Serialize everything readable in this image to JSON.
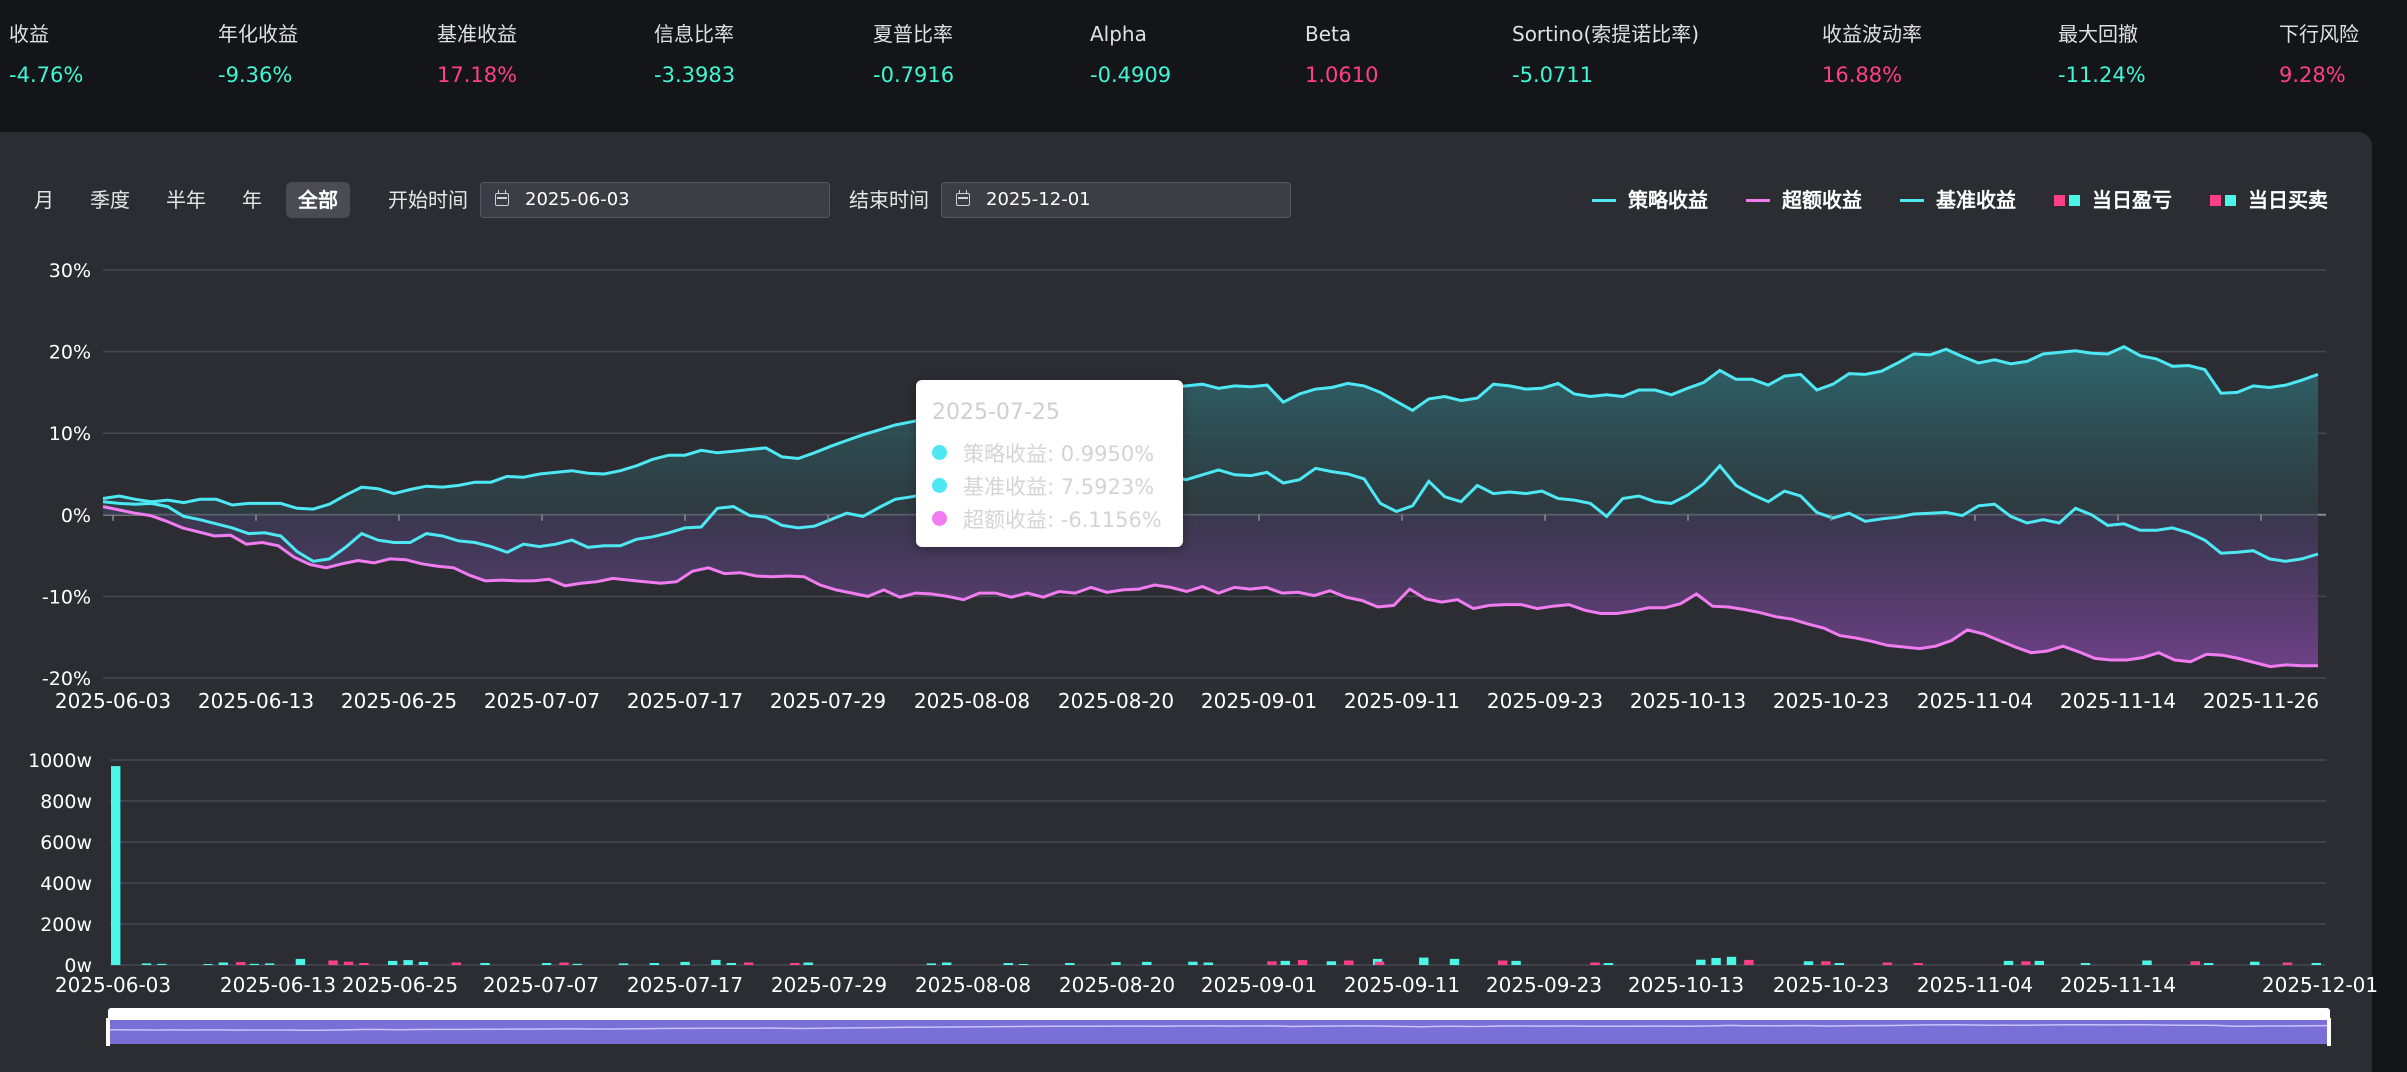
{
  "metrics": [
    {
      "label": "收益",
      "value": "-4.76%",
      "color": "#3ff7d4"
    },
    {
      "label": "年化收益",
      "value": "-9.36%",
      "color": "#3ff7d4"
    },
    {
      "label": "基准收益",
      "value": "17.18%",
      "color": "#ff3f86"
    },
    {
      "label": "信息比率",
      "value": "-3.3983",
      "color": "#3ff7d4"
    },
    {
      "label": "夏普比率",
      "value": "-0.7916",
      "color": "#3ff7d4"
    },
    {
      "label": "Alpha",
      "value": "-0.4909",
      "color": "#3ff7d4"
    },
    {
      "label": "Beta",
      "value": "1.0610",
      "color": "#ff3f86"
    },
    {
      "label": "Sortino(索提诺比率)",
      "value": "-5.0711",
      "color": "#3ff7d4"
    },
    {
      "label": "收益波动率",
      "value": "16.88%",
      "color": "#ff3f86"
    },
    {
      "label": "最大回撤",
      "value": "-11.24%",
      "color": "#3ff7d4"
    },
    {
      "label": "下行风险",
      "value": "9.28%",
      "color": "#ff3f86"
    }
  ],
  "controls": {
    "periods": [
      "月",
      "季度",
      "半年",
      "年",
      "全部"
    ],
    "active_period": "全部",
    "start_label": "开始时间",
    "start_date": "2025-06-03",
    "end_label": "结束时间",
    "end_date": "2025-12-01"
  },
  "legend": [
    {
      "name": "策略收益",
      "type": "line",
      "color": "#4de8f4"
    },
    {
      "name": "超额收益",
      "type": "line",
      "color": "#f07cf0"
    },
    {
      "name": "基准收益",
      "type": "line",
      "color": "#4de8f4"
    },
    {
      "name": "当日盈亏",
      "type": "squares",
      "colors": [
        "#ff3f86",
        "#4df5e6"
      ]
    },
    {
      "name": "当日买卖",
      "type": "squares",
      "colors": [
        "#ff3f86",
        "#4df5e6"
      ]
    }
  ],
  "tooltip": {
    "title": "2025-07-25",
    "rows": [
      {
        "label": "策略收益: 0.9950%",
        "color": "#4de8f4"
      },
      {
        "label": "基准收益: 7.5923%",
        "color": "#4de8f4"
      },
      {
        "label": "超额收益: -6.1156%",
        "color": "#f07cf0"
      }
    ]
  },
  "chart_data": [
    {
      "type": "line",
      "x_ticks": [
        "2025-06-03",
        "2025-06-13",
        "2025-06-25",
        "2025-07-07",
        "2025-07-17",
        "2025-07-29",
        "2025-08-08",
        "2025-08-20",
        "2025-09-01",
        "2025-09-11",
        "2025-09-23",
        "2025-10-13",
        "2025-10-23",
        "2025-11-04",
        "2025-11-14",
        "2025-11-26"
      ],
      "y_ticks": [
        "30%",
        "20%",
        "10%",
        "0%",
        "-10%",
        "-20%"
      ],
      "ylim": [
        -20,
        30
      ],
      "series": [
        {
          "name": "基准收益",
          "color": "#4de8f4",
          "values": [
            2.0,
            2.3,
            1.9,
            1.6,
            1.8,
            1.5,
            1.9,
            1.9,
            1.2,
            1.4,
            1.4,
            1.4,
            0.8,
            0.7,
            1.3,
            2.4,
            3.4,
            3.2,
            2.6,
            3.1,
            3.5,
            3.4,
            3.6,
            4.0,
            4.0,
            4.7,
            4.6,
            5.0,
            5.2,
            5.4,
            5.1,
            5.0,
            5.4,
            6.0,
            6.8,
            7.3,
            7.3,
            7.9,
            7.6,
            7.8,
            8.0,
            8.2,
            7.1,
            6.9,
            7.6,
            8.4,
            9.1,
            9.8,
            10.4,
            11.0,
            11.4,
            11.8,
            12.0,
            12.6,
            13.2,
            13.6,
            13.9,
            14.2,
            14.5,
            14.7,
            14.9,
            15.1,
            15.3,
            15.5,
            15.3,
            15.0,
            15.6,
            15.8,
            16.0,
            15.5,
            15.8,
            15.7,
            15.9,
            13.8,
            14.8,
            15.4,
            15.6,
            16.1,
            15.8,
            15.0,
            13.9,
            12.8,
            14.2,
            14.5,
            14.0,
            14.3,
            16.0,
            15.8,
            15.4,
            15.5,
            16.1,
            14.8,
            14.5,
            14.7,
            14.5,
            15.3,
            15.3,
            14.7,
            15.5,
            16.2,
            17.7,
            16.6,
            16.6,
            15.9,
            17.0,
            17.2,
            15.3,
            16.0,
            17.3,
            17.2,
            17.6,
            18.6,
            19.7,
            19.6,
            20.3,
            19.4,
            18.6,
            19.0,
            18.5,
            18.8,
            19.7,
            19.9,
            20.1,
            19.8,
            19.7,
            20.6,
            19.5,
            19.1,
            18.2,
            18.3,
            17.8,
            14.9,
            15.0,
            15.8,
            15.6,
            15.9,
            16.5,
            17.2
          ]
        },
        {
          "name": "策略收益",
          "color": "#4de8f4",
          "values": [
            1.6,
            1.4,
            1.3,
            1.4,
            1.0,
            -0.2,
            -0.6,
            -1.1,
            -1.6,
            -2.3,
            -2.2,
            -2.6,
            -4.5,
            -5.7,
            -5.4,
            -4.0,
            -2.3,
            -3.1,
            -3.4,
            -3.4,
            -2.3,
            -2.6,
            -3.2,
            -3.4,
            -3.9,
            -4.6,
            -3.6,
            -3.9,
            -3.6,
            -3.1,
            -4.0,
            -3.8,
            -3.8,
            -3.0,
            -2.7,
            -2.2,
            -1.6,
            -1.5,
            0.8,
            1.0,
            -0.1,
            -0.3,
            -1.3,
            -1.6,
            -1.4,
            -0.6,
            0.2,
            -0.2,
            0.9,
            1.9,
            2.2,
            2.6,
            3.1,
            4.1,
            3.8,
            4.4,
            5.1,
            4.7,
            5.3,
            5.0,
            4.4,
            4.6,
            4.0,
            4.9,
            5.6,
            5.1,
            4.7,
            4.3,
            4.9,
            5.5,
            4.9,
            4.8,
            5.2,
            3.9,
            4.3,
            5.7,
            5.3,
            5.0,
            4.4,
            1.4,
            0.4,
            1.1,
            4.1,
            2.2,
            1.6,
            3.6,
            2.6,
            2.8,
            2.6,
            2.9,
            2.0,
            1.8,
            1.4,
            -0.2,
            2.0,
            2.3,
            1.6,
            1.4,
            2.4,
            3.8,
            6.0,
            3.6,
            2.5,
            1.6,
            2.9,
            2.3,
            0.3,
            -0.4,
            0.2,
            -0.8,
            -0.5,
            -0.3,
            0.1,
            0.2,
            0.3,
            -0.1,
            1.1,
            1.3,
            -0.2,
            -1.0,
            -0.6,
            -1.0,
            0.8,
            0.0,
            -1.3,
            -1.1,
            -1.9,
            -1.9,
            -1.6,
            -2.2,
            -3.1,
            -4.7,
            -4.6,
            -4.4,
            -5.4,
            -5.7,
            -5.4,
            -4.8
          ]
        },
        {
          "name": "超额收益",
          "color": "#f07cf0",
          "values": [
            1.0,
            0.6,
            0.2,
            -0.1,
            -0.8,
            -1.6,
            -2.1,
            -2.6,
            -2.5,
            -3.6,
            -3.4,
            -3.8,
            -5.2,
            -6.1,
            -6.5,
            -6.0,
            -5.6,
            -5.9,
            -5.4,
            -5.5,
            -6.0,
            -6.3,
            -6.5,
            -7.4,
            -8.1,
            -8.0,
            -8.1,
            -8.1,
            -7.9,
            -8.7,
            -8.4,
            -8.2,
            -7.8,
            -8.0,
            -8.2,
            -8.4,
            -8.2,
            -6.9,
            -6.5,
            -7.2,
            -7.1,
            -7.5,
            -7.6,
            -7.5,
            -7.6,
            -8.6,
            -9.2,
            -9.6,
            -10.0,
            -9.2,
            -10.1,
            -9.6,
            -9.7,
            -10.0,
            -10.4,
            -9.6,
            -9.6,
            -10.1,
            -9.6,
            -10.1,
            -9.4,
            -9.6,
            -8.9,
            -9.5,
            -9.2,
            -9.1,
            -8.6,
            -8.9,
            -9.4,
            -8.8,
            -9.6,
            -8.9,
            -9.1,
            -8.9,
            -9.6,
            -9.5,
            -9.9,
            -9.3,
            -10.1,
            -10.5,
            -11.3,
            -11.1,
            -9.1,
            -10.3,
            -10.7,
            -10.4,
            -11.5,
            -11.1,
            -11.0,
            -11.0,
            -11.5,
            -11.2,
            -11.0,
            -11.7,
            -12.1,
            -12.1,
            -11.8,
            -11.4,
            -11.4,
            -10.9,
            -9.7,
            -11.2,
            -11.3,
            -11.6,
            -12.0,
            -12.5,
            -12.8,
            -13.4,
            -13.9,
            -14.8,
            -15.1,
            -15.5,
            -16.0,
            -16.2,
            -16.4,
            -16.1,
            -15.4,
            -14.1,
            -14.6,
            -15.4,
            -16.2,
            -16.9,
            -16.7,
            -16.1,
            -16.8,
            -17.6,
            -17.8,
            -17.8,
            -17.5,
            -16.9,
            -17.8,
            -18.0,
            -17.1,
            -17.2,
            -17.6,
            -18.1,
            -18.6,
            -18.4,
            -18.5,
            -18.5
          ]
        }
      ]
    },
    {
      "type": "bar",
      "title": "当日买卖",
      "x_ticks": [
        "2025-06-03",
        "2025-06-13",
        "2025-06-25",
        "2025-07-07",
        "2025-07-17",
        "2025-07-29",
        "2025-08-08",
        "2025-08-20",
        "2025-09-01",
        "2025-09-11",
        "2025-09-23",
        "2025-10-13",
        "2025-10-23",
        "2025-11-04",
        "2025-11-14",
        "2025-12-01"
      ],
      "y_ticks": [
        "1000w",
        "800w",
        "600w",
        "400w",
        "200w",
        "0w"
      ],
      "ylim": [
        0,
        1000
      ],
      "series": [
        {
          "name": "buy",
          "color": "#4df5e6",
          "values": [
            970,
            0,
            8,
            6,
            0,
            0,
            5,
            12,
            0,
            6,
            8,
            0,
            30,
            0,
            0,
            0,
            0,
            0,
            20,
            24,
            15,
            0,
            0,
            0,
            10,
            0,
            0,
            0,
            10,
            0,
            6,
            0,
            0,
            8,
            0,
            10,
            0,
            15,
            0,
            25,
            10,
            0,
            0,
            0,
            0,
            12,
            0,
            0,
            0,
            0,
            0,
            0,
            0,
            8,
            12,
            0,
            0,
            0,
            10,
            5,
            0,
            0,
            10,
            0,
            0,
            14,
            0,
            15,
            0,
            0,
            16,
            12,
            0,
            0,
            0,
            0,
            20,
            0,
            0,
            18,
            0,
            0,
            30,
            0,
            0,
            36,
            0,
            30,
            0,
            0,
            0,
            20,
            0,
            0,
            0,
            0,
            0,
            10,
            0,
            0,
            0,
            0,
            0,
            26,
            34,
            40,
            0,
            0,
            0,
            0,
            18,
            0,
            10,
            0,
            0,
            0,
            0,
            0,
            0,
            0,
            0,
            0,
            0,
            20,
            0,
            20,
            0,
            0,
            10,
            0,
            0,
            0,
            22,
            0,
            0,
            0,
            10,
            0,
            0,
            16,
            0,
            0,
            0,
            10
          ]
        },
        {
          "name": "sell",
          "color": "#ff3f86",
          "values": [
            0,
            0,
            0,
            0,
            0,
            0,
            0,
            0,
            14,
            0,
            0,
            0,
            0,
            0,
            22,
            16,
            10,
            0,
            0,
            0,
            0,
            0,
            12,
            0,
            0,
            0,
            0,
            0,
            0,
            12,
            0,
            0,
            0,
            0,
            0,
            0,
            0,
            0,
            0,
            0,
            0,
            12,
            0,
            0,
            10,
            0,
            0,
            0,
            0,
            0,
            0,
            0,
            0,
            0,
            0,
            0,
            0,
            0,
            0,
            0,
            0,
            0,
            0,
            0,
            0,
            0,
            0,
            0,
            0,
            0,
            0,
            0,
            0,
            0,
            0,
            18,
            0,
            24,
            0,
            0,
            22,
            0,
            16,
            0,
            0,
            0,
            0,
            0,
            0,
            0,
            22,
            0,
            0,
            0,
            0,
            0,
            12,
            0,
            0,
            0,
            0,
            0,
            0,
            0,
            0,
            0,
            25,
            0,
            0,
            0,
            0,
            18,
            0,
            0,
            0,
            12,
            0,
            10,
            0,
            0,
            0,
            0,
            0,
            0,
            18,
            0,
            0,
            0,
            0,
            0,
            0,
            0,
            0,
            0,
            0,
            18,
            0,
            0,
            0,
            0,
            0,
            12,
            0,
            0,
            0,
            0
          ]
        }
      ]
    }
  ]
}
